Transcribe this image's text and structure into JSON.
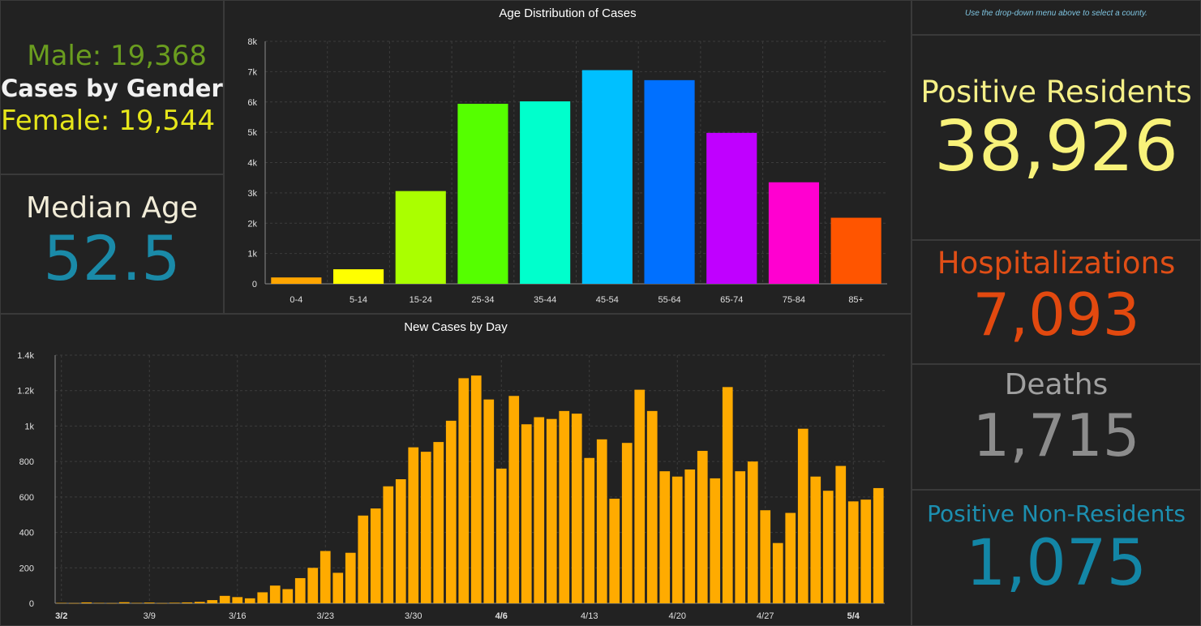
{
  "gender": {
    "male": "Male: 19,368",
    "title": "Cases by Gender",
    "female": "Female: 19,544"
  },
  "median_age": {
    "label": "Median Age",
    "value": "52.5"
  },
  "note": "Use the drop-down menu above to select a county.",
  "kpis": {
    "positive_residents": {
      "label": "Positive Residents",
      "value": "38,926"
    },
    "hospitalizations": {
      "label": "Hospitalizations",
      "value": "7,093"
    },
    "deaths": {
      "label": "Deaths",
      "value": "1,715"
    },
    "positive_non_residents": {
      "label": "Positive Non-Residents",
      "value": "1,075"
    }
  },
  "colors": {
    "male": "#6a9d1f",
    "female": "#e6e61a",
    "median": "#1a8aa8",
    "positive": "#f8f27a",
    "hosp": "#e2490f",
    "deaths": "#8c8c8c",
    "nonres": "#1386a6",
    "daily_bar": "#ffab00"
  },
  "chart_data": [
    {
      "type": "bar",
      "title": "Age Distribution of Cases",
      "categories": [
        "0-4",
        "5-14",
        "15-24",
        "25-34",
        "35-44",
        "45-54",
        "55-64",
        "65-74",
        "75-84",
        "85+"
      ],
      "values": [
        210,
        480,
        3060,
        5940,
        6020,
        7050,
        6720,
        4980,
        3350,
        2180
      ],
      "colors": [
        "#ffa500",
        "#ffff00",
        "#aaff00",
        "#55ff00",
        "#00ffcc",
        "#00c0ff",
        "#0070ff",
        "#c000ff",
        "#ff00d0",
        "#ff5500"
      ],
      "ylim": [
        0,
        8000
      ],
      "yticks": [
        "0",
        "1k",
        "2k",
        "3k",
        "4k",
        "5k",
        "6k",
        "7k",
        "8k"
      ],
      "grid": true
    },
    {
      "type": "bar",
      "title": "New Cases by Day",
      "values": [
        2,
        1,
        5,
        2,
        1,
        6,
        2,
        4,
        1,
        3,
        5,
        8,
        18,
        42,
        35,
        28,
        62,
        100,
        80,
        142,
        200,
        295,
        172,
        285,
        495,
        535,
        660,
        700,
        880,
        855,
        910,
        1030,
        1270,
        1285,
        1150,
        760,
        1170,
        1010,
        1050,
        1040,
        1085,
        1070,
        820,
        925,
        590,
        905,
        1205,
        1085,
        745,
        715,
        755,
        860,
        705,
        1220,
        745,
        800,
        525,
        340,
        510,
        985,
        715,
        635,
        775,
        575,
        585,
        650
      ],
      "ylim": [
        0,
        1400
      ],
      "yticks": [
        "0",
        "200",
        "400",
        "600",
        "800",
        "1k",
        "1.2k",
        "1.4k"
      ],
      "xticks": [
        {
          "index": 0,
          "label": "3/2",
          "bold": true
        },
        {
          "index": 7,
          "label": "3/9",
          "bold": false
        },
        {
          "index": 14,
          "label": "3/16",
          "bold": false
        },
        {
          "index": 21,
          "label": "3/23",
          "bold": false
        },
        {
          "index": 28,
          "label": "3/30",
          "bold": false
        },
        {
          "index": 35,
          "label": "4/6",
          "bold": true
        },
        {
          "index": 42,
          "label": "4/13",
          "bold": false
        },
        {
          "index": 49,
          "label": "4/20",
          "bold": false
        },
        {
          "index": 56,
          "label": "4/27",
          "bold": false
        },
        {
          "index": 63,
          "label": "5/4",
          "bold": true
        }
      ],
      "grid": true
    }
  ]
}
